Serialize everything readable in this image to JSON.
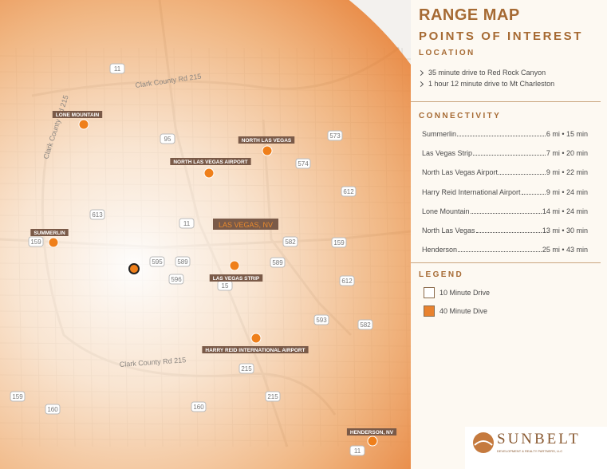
{
  "sidebar": {
    "title": "RANGE MAP",
    "subtitle": "POINTS OF INTEREST",
    "location_heading": "LOCATION",
    "location_items": [
      "35 minute drive to Red Rock Canyon",
      "1 hour 12 minute drive to Mt Charleston"
    ],
    "connectivity_heading": "CONNECTIVITY",
    "connectivity": [
      {
        "place": "Summerlin",
        "distance": "6 mi • 15 min"
      },
      {
        "place": "Las Vegas Strip",
        "distance": "7 mi • 20 min"
      },
      {
        "place": "North Las Vegas Airport",
        "distance": "9 mi • 22 min"
      },
      {
        "place": "Harry Reid International Airport",
        "distance": "9 mi • 24 min"
      },
      {
        "place": "Lone Mountain",
        "distance": "14 mi • 24 min"
      },
      {
        "place": "North Las Vegas",
        "distance": "13 mi • 30 min"
      },
      {
        "place": "Henderson",
        "distance": "25 mi • 43 min"
      }
    ],
    "legend_heading": "LEGEND",
    "legend": [
      "10 Minute Drive",
      "40 Minute Dive"
    ]
  },
  "map": {
    "city_label": "LAS VEGAS, NV",
    "points": [
      "LONE MOUNTAIN",
      "NORTH LAS VEGAS",
      "NORTH LAS VEGAS AIRPORT",
      "SUMMERLIN",
      "LAS VEGAS STRIP",
      "HARRY REID INTERNATIONAL AIRPORT",
      "HENDERSON, NV"
    ],
    "roads": [
      "Clark County Rd 215",
      "Clark County Rd 215",
      "Clark County Rd 215",
      "11",
      "95",
      "573",
      "574",
      "612",
      "613",
      "11",
      "159",
      "582",
      "159",
      "595",
      "589",
      "589",
      "596",
      "15",
      "612",
      "593",
      "582",
      "215",
      "215",
      "159",
      "160",
      "160",
      "11"
    ]
  },
  "logo": {
    "name": "SUNBELT",
    "tagline": "DEVELOPMENT & REALTY PARTNERS, LLC"
  }
}
